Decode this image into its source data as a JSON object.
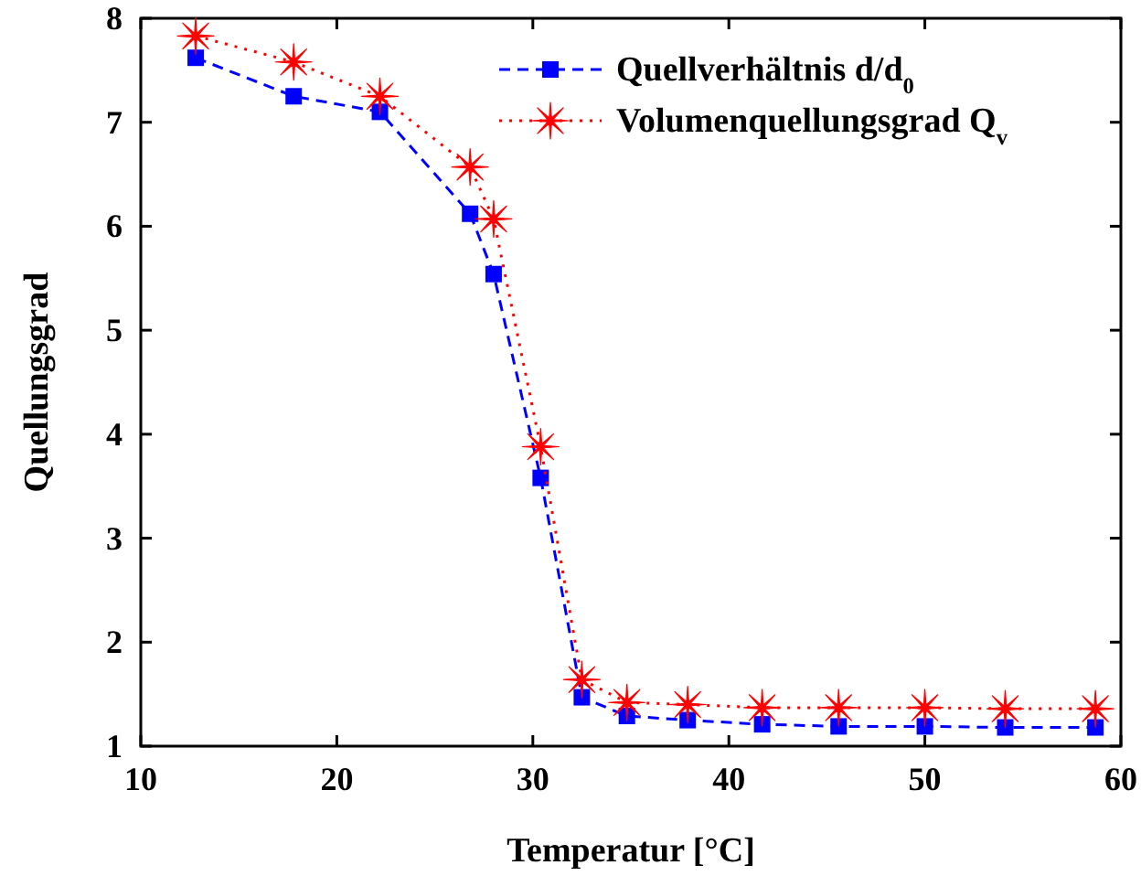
{
  "chart_data": {
    "type": "line",
    "xlabel": "Temperatur [°C]",
    "ylabel": "Quellungsgrad",
    "xlim": [
      10,
      60
    ],
    "xticks": [
      10,
      20,
      30,
      40,
      50,
      60
    ],
    "ylim": [
      1,
      8
    ],
    "yticks": [
      1,
      2,
      3,
      4,
      5,
      6,
      7,
      8
    ],
    "x": [
      12.8,
      17.8,
      22.2,
      26.8,
      28.0,
      30.4,
      32.5,
      34.8,
      37.9,
      41.7,
      45.6,
      50.0,
      54.1,
      58.7
    ],
    "legend": "top right",
    "grid": false,
    "series": [
      {
        "name": "Quellverhältnis d/d$_{0}$",
        "color": "#0000ff",
        "marker": "square",
        "line_style": "dashed",
        "values": [
          7.62,
          7.25,
          7.1,
          6.12,
          5.54,
          3.58,
          1.47,
          1.29,
          1.25,
          1.21,
          1.19,
          1.19,
          1.18,
          1.18
        ]
      },
      {
        "name": "Volumenquellungsgrad Q$_{v}$",
        "color": "#ff0000",
        "marker": "star",
        "line_style": "dotted",
        "values": [
          7.83,
          7.58,
          7.25,
          6.57,
          6.07,
          3.88,
          1.64,
          1.42,
          1.4,
          1.37,
          1.37,
          1.37,
          1.36,
          1.36
        ]
      }
    ]
  }
}
